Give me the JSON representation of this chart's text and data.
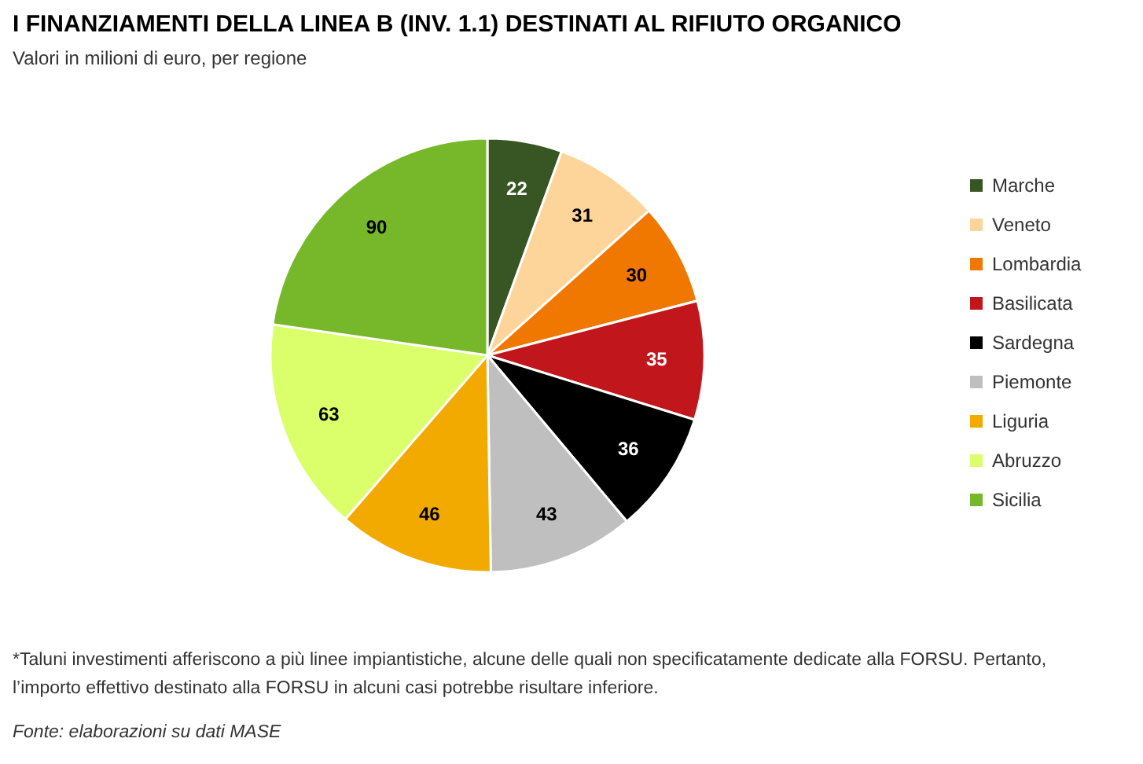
{
  "chart_data": {
    "type": "pie",
    "title": "I FINANZIAMENTI DELLA LINEA B (INV. 1.1) DESTINATI AL RIFIUTO ORGANICO",
    "subtitle": "Valori in milioni di euro, per regione",
    "categories": [
      "Marche",
      "Veneto",
      "Lombardia",
      "Basilicata",
      "Sardegna",
      "Piemonte",
      "Liguria",
      "Abruzzo",
      "Sicilia"
    ],
    "values": [
      22,
      31,
      30,
      35,
      36,
      43,
      46,
      63,
      90
    ],
    "colors": [
      "#375623",
      "#fdd59a",
      "#f07800",
      "#c0161c",
      "#000000",
      "#bfbfbf",
      "#f2a900",
      "#dbff6a",
      "#77b82a"
    ],
    "data_labels": true,
    "legend": "right",
    "annotations": [
      "*Taluni investimenti afferiscono a più linee impiantistiche, alcune delle quali non specificatamente dedicate alla FORSU. Pertanto,\nl’importo effettivo destinato alla FORSU in alcuni casi potrebbe risultare inferiore.",
      "Fonte: elaborazioni su dati MASE"
    ]
  }
}
